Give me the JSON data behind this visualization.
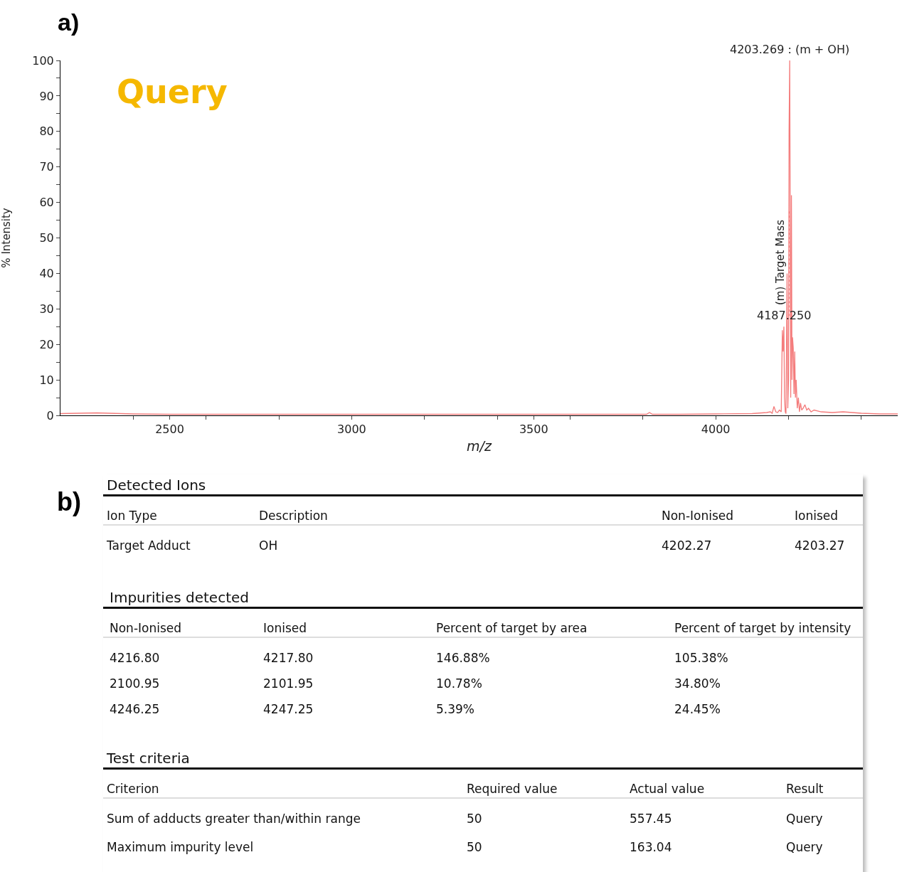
{
  "chart_data": [
    {
      "type": "line",
      "xlabel": "m/z",
      "ylabel": "% Intensity",
      "xlim": [
        2200,
        4500
      ],
      "ylim": [
        0,
        100
      ],
      "xticks": [
        {
          "value": 2400,
          "label": null
        },
        2500,
        {
          "value": 2600,
          "label": null
        },
        {
          "value": 2800,
          "label": null
        },
        3000,
        {
          "value": 3200,
          "label": null
        },
        {
          "value": 3400,
          "label": null
        },
        3500,
        {
          "value": 3600,
          "label": null
        },
        {
          "value": 3800,
          "label": null
        },
        4000,
        {
          "value": 4200,
          "label": null
        },
        {
          "value": 4400,
          "label": null
        }
      ],
      "yticks": [
        0,
        {
          "value": 5,
          "label": null
        },
        10,
        {
          "value": 15,
          "label": null
        },
        20,
        {
          "value": 25,
          "label": null
        },
        30,
        {
          "value": 35,
          "label": null
        },
        40,
        {
          "value": 45,
          "label": null
        },
        50,
        {
          "value": 55,
          "label": null
        },
        60,
        {
          "value": 65,
          "label": null
        },
        70,
        {
          "value": 75,
          "label": null
        },
        80,
        {
          "value": 85,
          "label": null
        },
        90,
        {
          "value": 95,
          "label": null
        },
        100
      ],
      "grid": false,
      "marker": "none",
      "line_style": "solid",
      "series": [
        {
          "color": "#f47c7c",
          "x": [
            2200,
            2250,
            2300,
            2400,
            2500,
            2700,
            2900,
            3100,
            3300,
            3500,
            3700,
            3810,
            3818,
            3826,
            3900,
            4000,
            4100,
            4140,
            4150,
            4155,
            4160,
            4165,
            4170,
            4175,
            4180,
            4183,
            4185,
            4187.25,
            4189,
            4191,
            4193,
            4196,
            4198,
            4200,
            4201.5,
            4203.269,
            4204.5,
            4206,
            4208,
            4209.5,
            4211,
            4213,
            4215,
            4217,
            4219,
            4221,
            4224,
            4227,
            4230,
            4233,
            4236,
            4240,
            4245,
            4250,
            4255,
            4262,
            4270,
            4290,
            4320,
            4350,
            4400,
            4450,
            4500
          ],
          "values": [
            0.5,
            0.6,
            0.7,
            0.4,
            0.3,
            0.3,
            0.3,
            0.3,
            0.3,
            0.3,
            0.3,
            0.3,
            0.8,
            0.3,
            0.3,
            0.4,
            0.5,
            0.8,
            1,
            0.6,
            2.5,
            1,
            0.8,
            1.5,
            1,
            24,
            18,
            25,
            5,
            1,
            0.5,
            40,
            2,
            10,
            80,
            100,
            60,
            5,
            62,
            10,
            22,
            19,
            6,
            18,
            5,
            10,
            2,
            5,
            1,
            3.5,
            1.5,
            2,
            3,
            1.5,
            2,
            1,
            1.5,
            1,
            0.8,
            1,
            0.6,
            0.4,
            0.4
          ]
        }
      ],
      "ref_lines": [
        {
          "axis": "x",
          "value": 4202.27,
          "label": "(m) Target Mass",
          "color": "#f47c7c",
          "line_style": "dotted"
        }
      ],
      "annotations": [
        "a)",
        "Query",
        {
          "text": "4203.269 : (m + OH)",
          "x": 4203.269,
          "y": 100
        },
        {
          "text": "4187.250",
          "x": 4187.25,
          "y": 25
        }
      ]
    },
    {
      "type": "other",
      "annotations": [
        "b)",
        "Detected Ions",
        "Ion Type",
        "Description",
        "Non-Ionised",
        "Ionised",
        "Target Adduct",
        "OH",
        "4202.27",
        "4203.27",
        "Impurities detected",
        "Non-Ionised",
        "Ionised",
        "Percent of target by area",
        "Percent of target by intensity",
        "4216.80",
        "4217.80",
        "146.88%",
        "105.38%",
        "2100.95",
        "2101.95",
        "10.78%",
        "34.80%",
        "4246.25",
        "4247.25",
        "5.39%",
        "24.45%",
        "Test criteria",
        "Criterion",
        "Required value",
        "Actual value",
        "Result",
        "Sum of adducts greater than/within range",
        "50",
        "557.45",
        "Query",
        "Maximum impurity level",
        "50",
        "163.04",
        "Query"
      ]
    }
  ]
}
